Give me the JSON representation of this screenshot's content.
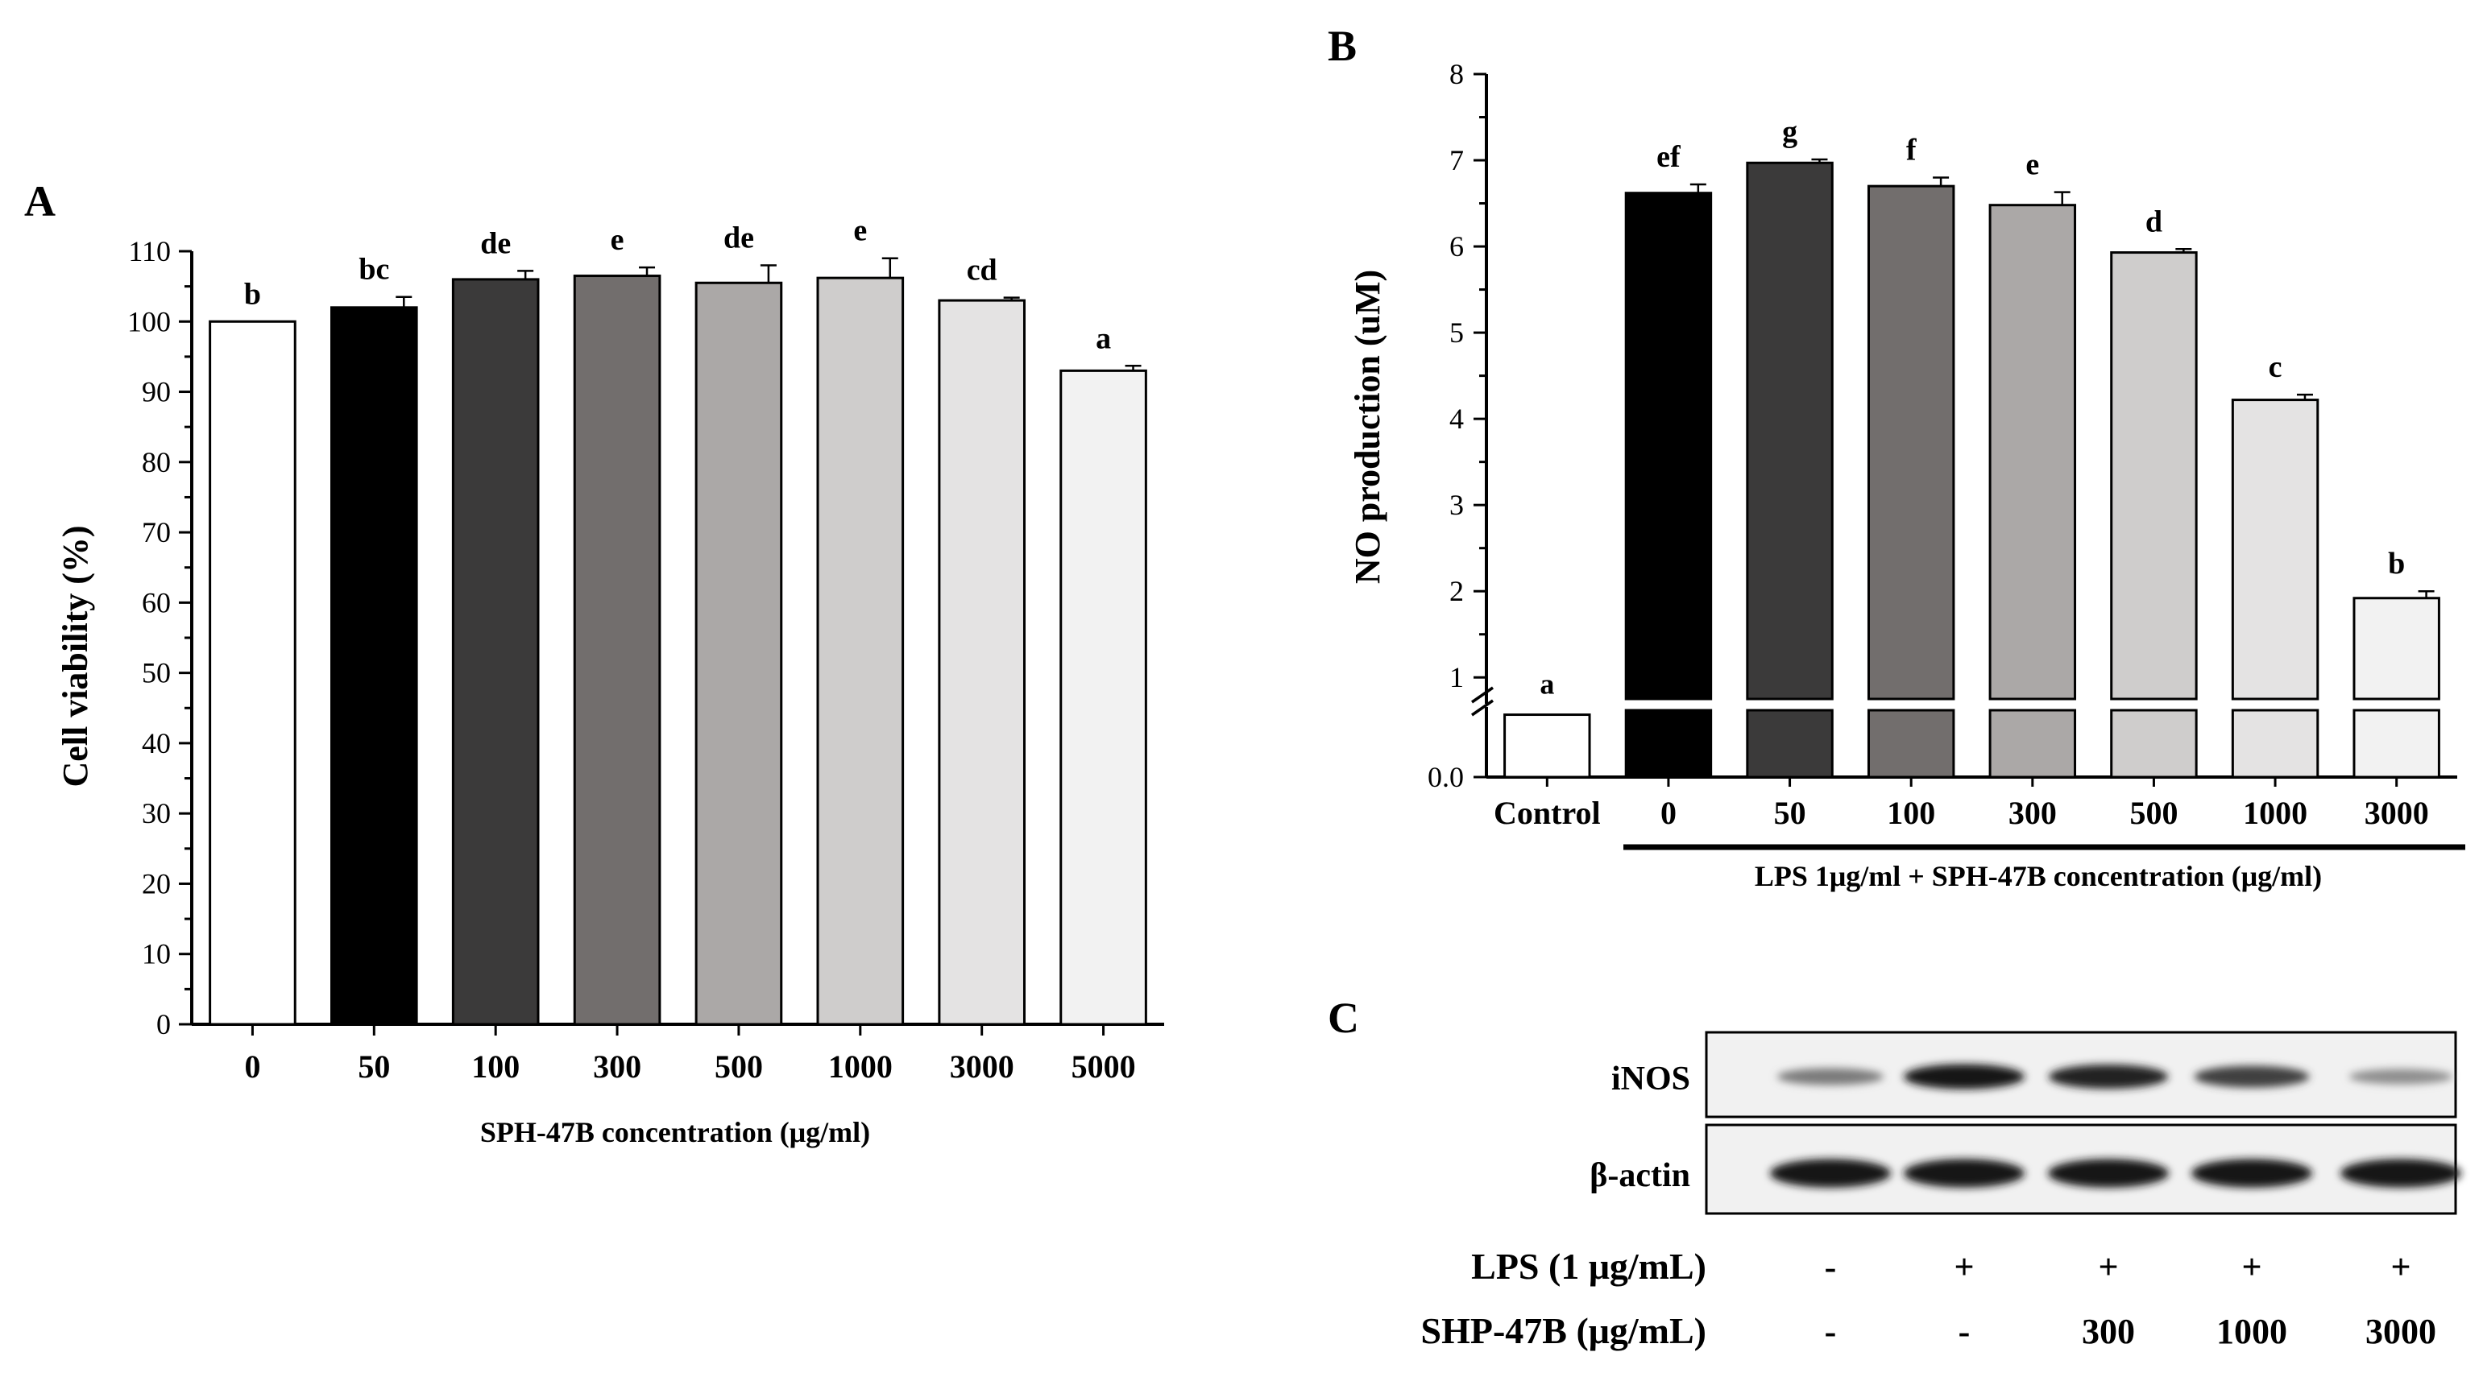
{
  "chart_data": [
    {
      "panel": "A",
      "type": "bar",
      "ylabel": "Cell viability (%)",
      "xlabel": "SPH-47B concentration (μg/ml)",
      "ylim": [
        0,
        110
      ],
      "yticks": [
        0,
        10,
        20,
        30,
        40,
        50,
        60,
        70,
        80,
        90,
        100,
        110
      ],
      "categories": [
        "0",
        "50",
        "100",
        "300",
        "500",
        "1000",
        "3000",
        "5000"
      ],
      "values": [
        100,
        102,
        106,
        106.5,
        105.5,
        106.2,
        103,
        93
      ],
      "errors": [
        0,
        1.5,
        1.2,
        1.2,
        2.5,
        2.8,
        0.4,
        0.7
      ],
      "letters": [
        "b",
        "bc",
        "de",
        "e",
        "de",
        "e",
        "cd",
        "a"
      ],
      "colors": [
        "#ffffff",
        "#000000",
        "#3b3a3a",
        "#726e6d",
        "#aba8a7",
        "#cfcdcc",
        "#e4e3e3",
        "#f2f2f2"
      ]
    },
    {
      "panel": "B",
      "type": "bar",
      "ylabel": "NO production (uM)",
      "xlabel": "LPS 1μg/ml + SPH-47B concentration (μg/ml)",
      "ylim": [
        0,
        8
      ],
      "yticks": [
        "0.0",
        "1",
        "2",
        "3",
        "4",
        "5",
        "6",
        "7",
        "8"
      ],
      "categories": [
        "Control",
        "0",
        "50",
        "100",
        "300",
        "500",
        "1000",
        "3000"
      ],
      "values": [
        0.7,
        6.62,
        6.97,
        6.7,
        6.48,
        5.93,
        4.22,
        1.92
      ],
      "errors": [
        0,
        0.1,
        0.04,
        0.1,
        0.15,
        0.04,
        0.06,
        0.08
      ],
      "letters": [
        "a",
        "ef",
        "g",
        "f",
        "e",
        "d",
        "c",
        "b"
      ],
      "colors": [
        "#ffffff",
        "#000000",
        "#3b3a3a",
        "#726e6d",
        "#aba8a7",
        "#cfcdcc",
        "#e4e3e3",
        "#f2f2f2"
      ]
    }
  ],
  "panels": {
    "a": "A",
    "b": "B",
    "c": "C"
  },
  "western": {
    "bands": [
      {
        "label": "iNOS",
        "intensity": [
          0.45,
          0.95,
          0.9,
          0.75,
          0.35
        ]
      },
      {
        "label": "β-actin",
        "intensity": [
          0.95,
          0.95,
          0.95,
          0.95,
          0.95
        ]
      }
    ],
    "conditions": [
      {
        "label": "LPS (1 μg/mL)",
        "values": [
          "-",
          "+",
          "+",
          "+",
          "+"
        ]
      },
      {
        "label": "SHP-47B  (μg/mL)",
        "values": [
          "-",
          "-",
          "300",
          "1000",
          "3000"
        ]
      }
    ]
  }
}
